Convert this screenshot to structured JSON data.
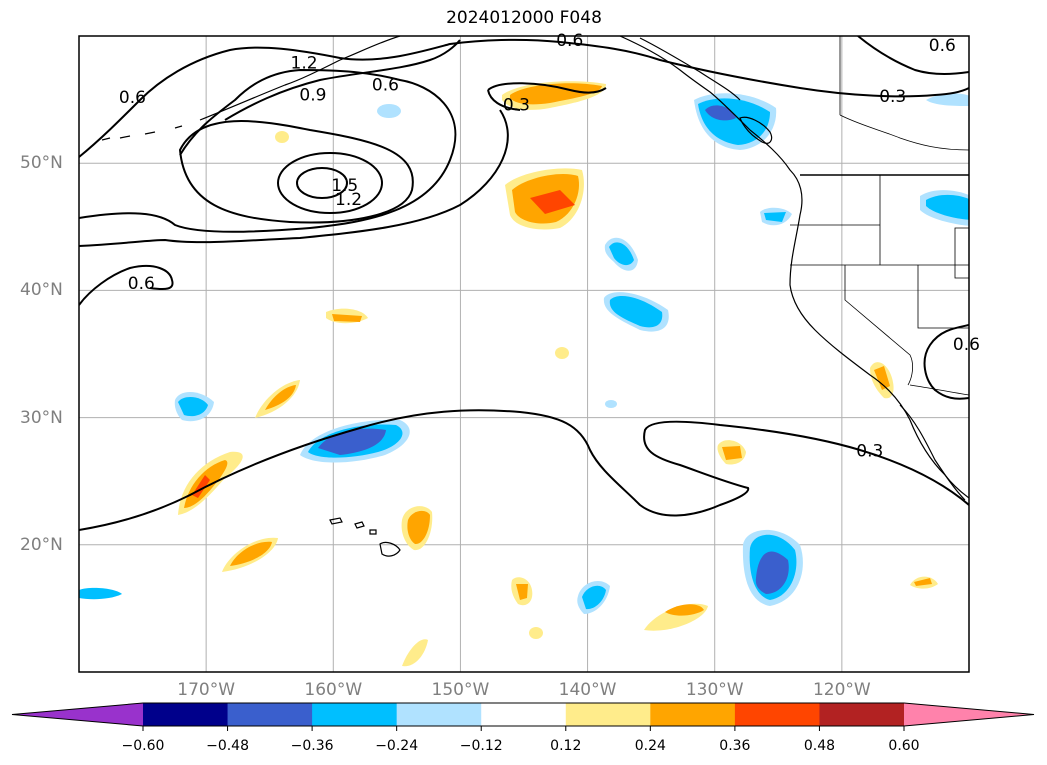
{
  "title": "2024012000 F048",
  "map": {
    "lon_range": [
      -180,
      -110
    ],
    "lat_range": [
      10,
      60
    ],
    "lon_ticks": [
      {
        "value": -170,
        "label": "170°W"
      },
      {
        "value": -160,
        "label": "160°W"
      },
      {
        "value": -150,
        "label": "150°W"
      },
      {
        "value": -140,
        "label": "140°W"
      },
      {
        "value": -130,
        "label": "130°W"
      },
      {
        "value": -120,
        "label": "120°W"
      }
    ],
    "lat_ticks": [
      {
        "value": 20,
        "label": "20°N"
      },
      {
        "value": 30,
        "label": "30°N"
      },
      {
        "value": 40,
        "label": "40°N"
      },
      {
        "value": 50,
        "label": "50°N"
      }
    ],
    "grid": true,
    "contour_labels": [
      {
        "text": "0.6",
        "lon": -175.8,
        "lat": 55.2
      },
      {
        "text": "1.2",
        "lon": -162.3,
        "lat": 57.9
      },
      {
        "text": "0.9",
        "lon": -161.6,
        "lat": 55.4
      },
      {
        "text": "0.6",
        "lon": -155.9,
        "lat": 56.2
      },
      {
        "text": "0.6",
        "lon": -141.4,
        "lat": 59.7
      },
      {
        "text": "0.3",
        "lon": -145.6,
        "lat": 54.6
      },
      {
        "text": "0.6",
        "lon": -112.1,
        "lat": 59.3
      },
      {
        "text": "0.3",
        "lon": -116.0,
        "lat": 55.3
      },
      {
        "text": "1.5",
        "lon": -159.1,
        "lat": 48.3
      },
      {
        "text": "1.2",
        "lon": -158.8,
        "lat": 47.2
      },
      {
        "text": "0.6",
        "lon": -175.1,
        "lat": 40.6
      },
      {
        "text": "0.6",
        "lon": -110.2,
        "lat": 35.8
      },
      {
        "text": "0.3",
        "lon": -117.8,
        "lat": 27.4
      }
    ]
  },
  "colorbar": {
    "colors": [
      "#9932cc",
      "#00008b",
      "#3a5fcd",
      "#00bfff",
      "#b0e2ff",
      "#ffffff",
      "#ffec8b",
      "#ffa500",
      "#ff4500",
      "#b22222",
      "#ff82ab"
    ],
    "tick_labels": [
      "−0.60",
      "−0.48",
      "−0.36",
      "−0.24",
      "−0.12",
      "0.12",
      "0.24",
      "0.36",
      "0.48",
      "0.60"
    ],
    "extend": "both"
  }
}
